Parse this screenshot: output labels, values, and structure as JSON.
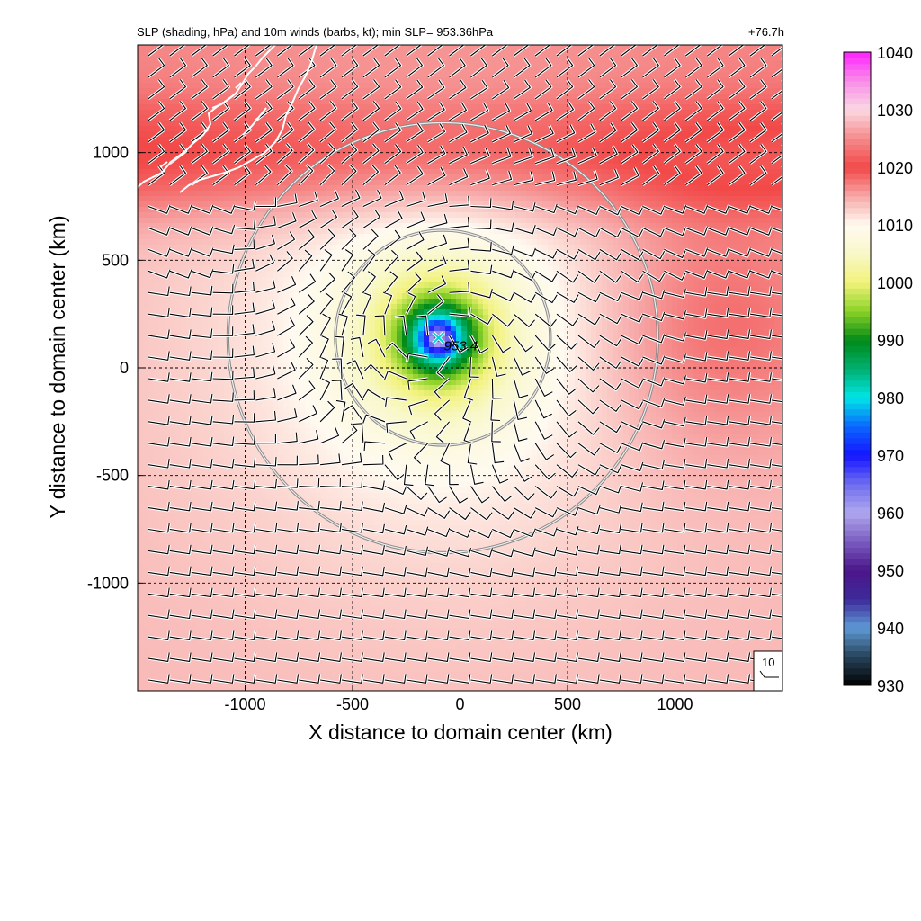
{
  "chart_data": {
    "type": "heatmap",
    "title": "SLP (shading, hPa) and 10m winds (barbs, kt); min SLP= 953.36hPa",
    "valid_time": "+76.7h",
    "xlabel": "X distance to domain center (km)",
    "ylabel": "Y distance to domain center (km)",
    "xlim": [
      -1500,
      1500
    ],
    "ylim": [
      -1500,
      1500
    ],
    "xticks": [
      -1000,
      -500,
      0,
      500,
      1000
    ],
    "yticks": [
      -1000,
      -500,
      0,
      500,
      1000
    ],
    "xtick_labels": [
      "-1000",
      "-500",
      "0",
      "500",
      "1000"
    ],
    "ytick_labels": [
      "-1000",
      "-500",
      "0",
      "500",
      "1000"
    ],
    "grid": true,
    "grid_style": "dashed",
    "colorbar": {
      "min": 930,
      "max": 1040,
      "ticks": [
        1040,
        1030,
        1020,
        1010,
        1000,
        990,
        980,
        970,
        960,
        950,
        940,
        930
      ],
      "tick_labels": [
        "1040",
        "1030",
        "1020",
        "1010",
        "1000",
        "990",
        "980",
        "970",
        "960",
        "950",
        "940",
        "930"
      ],
      "colors": [
        {
          "value": 930,
          "color": "#000000"
        },
        {
          "value": 935,
          "color": "#26435a"
        },
        {
          "value": 940,
          "color": "#5f9ad6"
        },
        {
          "value": 945,
          "color": "#3d2a9a"
        },
        {
          "value": 950,
          "color": "#4b168a"
        },
        {
          "value": 955,
          "color": "#7a5cc0"
        },
        {
          "value": 960,
          "color": "#b0a8ee"
        },
        {
          "value": 965,
          "color": "#6e6cf0"
        },
        {
          "value": 970,
          "color": "#1414ff"
        },
        {
          "value": 975,
          "color": "#0b66ff"
        },
        {
          "value": 980,
          "color": "#00e6e6"
        },
        {
          "value": 985,
          "color": "#00b070"
        },
        {
          "value": 990,
          "color": "#008a18"
        },
        {
          "value": 995,
          "color": "#8cd228"
        },
        {
          "value": 1000,
          "color": "#f2f27a"
        },
        {
          "value": 1005,
          "color": "#f8f8c8"
        },
        {
          "value": 1010,
          "color": "#fffaf0"
        },
        {
          "value": 1015,
          "color": "#f7a8a8"
        },
        {
          "value": 1020,
          "color": "#f24848"
        },
        {
          "value": 1025,
          "color": "#f58a8a"
        },
        {
          "value": 1030,
          "color": "#fad8e2"
        },
        {
          "value": 1035,
          "color": "#f88ee8"
        },
        {
          "value": 1040,
          "color": "#ff22ff"
        }
      ]
    },
    "center": {
      "x": -100,
      "y": 140,
      "min_slp": 953.36,
      "label": "953.4",
      "color": "#00d4d4"
    },
    "range_rings_km": [
      500,
      1000
    ],
    "range_ring_center": {
      "x": -80,
      "y": 140
    },
    "slp_field": {
      "background_slp": 1015,
      "low": {
        "x": -100,
        "y": 140,
        "depth": 62,
        "radius_km": 120
      },
      "ridge_north": {
        "y_center": 940,
        "amplitude": 6,
        "width_km": 260
      },
      "ridge_east": {
        "x_center": 1200,
        "y_center": 200,
        "amplitude": 5,
        "radius_km": 600
      }
    },
    "wind_barb_reference": {
      "label": "10",
      "speed_kt": 10
    },
    "wind_barbs": {
      "spacing_km": 100,
      "description": "cyclonic circulation around the low with easterly trade-like flow to the south"
    },
    "coastline": {
      "label": "land outline (upper-left)",
      "color": "#ffffff"
    }
  }
}
